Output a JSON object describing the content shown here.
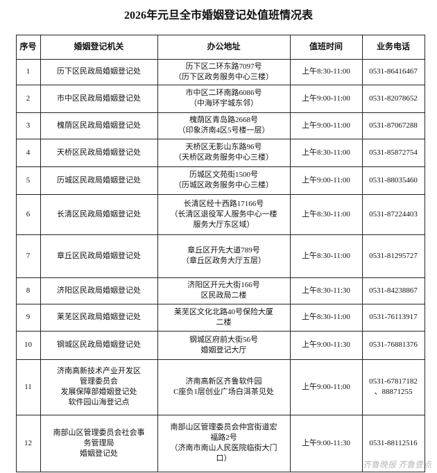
{
  "title": "2026年元旦全市婚姻登记处值班情况表",
  "table": {
    "headers": [
      "序号",
      "婚姻登记机关",
      "办公地址",
      "值班时间",
      "业务电话"
    ],
    "rows": [
      [
        [
          "1"
        ],
        [
          "历下区民政局婚姻登记处"
        ],
        [
          "历下区二环东路7097号",
          "（历下区政务服务中心三楼）"
        ],
        [
          "上午8:30-11:00"
        ],
        [
          "0531-86416467"
        ]
      ],
      [
        [
          "2"
        ],
        [
          "市中区民政局婚姻登记处"
        ],
        [
          "市中区二环南路6086号",
          "（中海环宇城东邻）"
        ],
        [
          "上午9:00-11:00"
        ],
        [
          "0531-82078652"
        ]
      ],
      [
        [
          "3"
        ],
        [
          "槐荫区民政局婚姻登记处"
        ],
        [
          "槐荫区青岛路2668号",
          "（印象济南4区5号楼一层）"
        ],
        [
          "上午9:00-11:00"
        ],
        [
          "0531-87067288"
        ]
      ],
      [
        [
          "4"
        ],
        [
          "天桥区民政局婚姻登记处"
        ],
        [
          "天桥区无影山东路96号",
          "（天桥区政务服务中心三楼）"
        ],
        [
          "上午8:30-11:00"
        ],
        [
          "0531-85872754"
        ]
      ],
      [
        [
          "5"
        ],
        [
          "历城区民政局婚姻登记处"
        ],
        [
          "历城区文苑街1500号",
          "（历城区政务服务中心三楼）"
        ],
        [
          "上午9:00-11:00"
        ],
        [
          "0531-88035460"
        ]
      ],
      [
        [
          "6"
        ],
        [
          "长清区民政局婚姻登记处"
        ],
        [
          "长清区经十西路17166号",
          "（长清区退役军人服务中心一楼",
          "服务大厅东区域）"
        ],
        [
          "上午8:30-11:00"
        ],
        [
          "0531-87224403"
        ]
      ],
      [
        [
          "7"
        ],
        [
          "章丘区民政局婚姻登记处"
        ],
        [
          "章丘区开先大道789号",
          "（章丘区政务大厅五层）"
        ],
        [
          "上午8:30-11:00"
        ],
        [
          "0531-81295727"
        ]
      ],
      [
        [
          "8"
        ],
        [
          "济阳区民政局婚姻登记处"
        ],
        [
          "济阳区开元大街166号",
          "区民政局二楼"
        ],
        [
          "上午8:30-11:30"
        ],
        [
          "0531-84238867"
        ]
      ],
      [
        [
          "9"
        ],
        [
          "莱芜区民政局婚姻登记处"
        ],
        [
          "莱芜区文化北路40号保险大厦",
          "二楼"
        ],
        [
          "上午8:30-11:00"
        ],
        [
          "0531-76113917"
        ]
      ],
      [
        [
          "10"
        ],
        [
          "钢城区民政局婚姻登记处"
        ],
        [
          "钢城区府前大街56号",
          "婚姻登记大厅"
        ],
        [
          "上午9:00-11:30"
        ],
        [
          "0531-76881376"
        ]
      ],
      [
        [
          "11"
        ],
        [
          "济南高新技术产业开发区",
          "管理委员会",
          "发展保障部婚姻登记处",
          "软件园山海登记点"
        ],
        [
          "济南高新区齐鲁软件园",
          "C座负1层创业广场白洱茶见处"
        ],
        [
          "上午9:00-11:00"
        ],
        [
          "0531-67817182",
          "、88871255"
        ]
      ],
      [
        [
          "12"
        ],
        [
          "南部山区管理委员会社会事",
          "务管理局",
          "婚姻登记处"
        ],
        [
          "南部山区管理委员会仲宫街道宏",
          "福路2号",
          "（济南市南山人民医院临街大门",
          "口）"
        ],
        [
          "上午9:00-11:30"
        ],
        [
          "0531-88112516"
        ]
      ]
    ]
  },
  "watermark": "齐鲁晚报 齐鲁壹点"
}
